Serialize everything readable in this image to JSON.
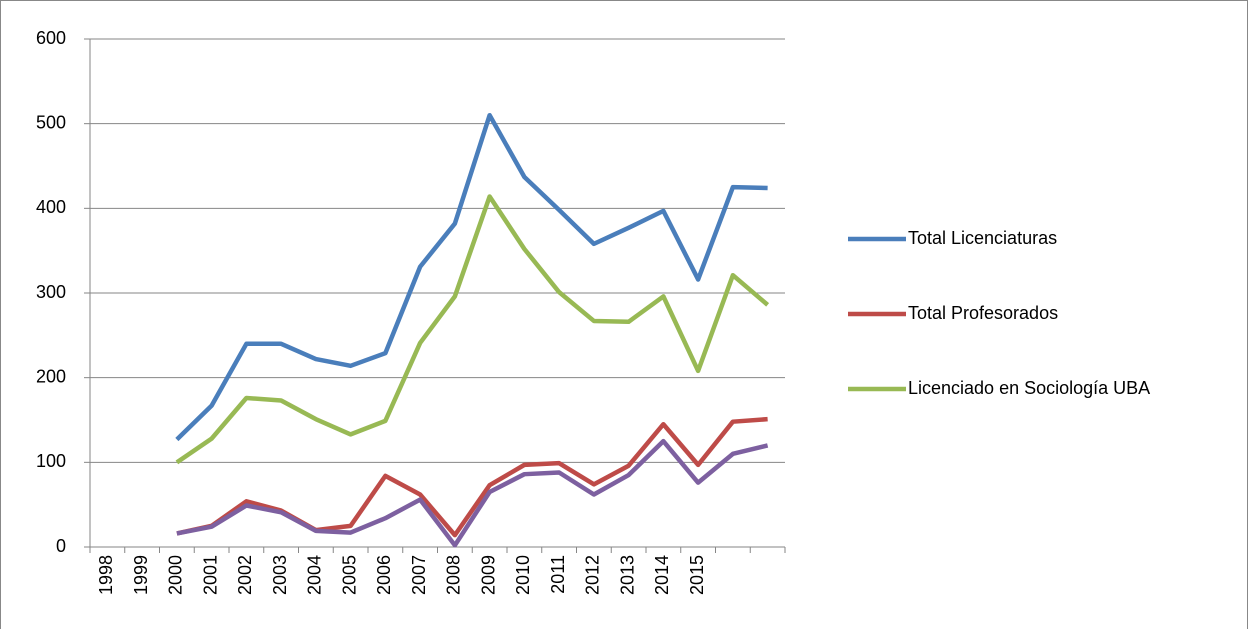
{
  "chart_data": {
    "type": "line",
    "categories": [
      "1998",
      "1999",
      "2000",
      "2001",
      "2002",
      "2003",
      "2004",
      "2005",
      "2006",
      "2007",
      "2008",
      "2009",
      "2010",
      "2011",
      "2012",
      "2013",
      "2014",
      "2015",
      null,
      null
    ],
    "series": [
      {
        "name": "Total Licenciaturas",
        "color": "#4a7ebb",
        "values": [
          null,
          null,
          127,
          167,
          240,
          240,
          222,
          214,
          229,
          331,
          382,
          510,
          437,
          398,
          358,
          377,
          397,
          316,
          425,
          424
        ]
      },
      {
        "name": "Total Profesorados",
        "color": "#be4b48",
        "values": [
          null,
          null,
          16,
          25,
          54,
          43,
          20,
          25,
          84,
          62,
          14,
          73,
          97,
          99,
          74,
          96,
          145,
          97,
          148,
          151
        ]
      },
      {
        "name": "Licenciado en Sociología UBA",
        "color": "#98b954",
        "values": [
          null,
          null,
          100,
          128,
          176,
          173,
          151,
          133,
          149,
          241,
          296,
          414,
          352,
          301,
          267,
          266,
          296,
          208,
          321,
          286
        ]
      },
      {
        "color": "#7d60a0",
        "values": [
          null,
          null,
          16,
          24,
          49,
          41,
          19,
          17,
          34,
          56,
          2,
          65,
          86,
          88,
          62,
          85,
          125,
          76,
          110,
          120
        ]
      }
    ],
    "ylim": [
      0,
      600
    ],
    "yticks": [
      0,
      100,
      200,
      300,
      400,
      500,
      600
    ],
    "grid": true,
    "legend": "right"
  }
}
